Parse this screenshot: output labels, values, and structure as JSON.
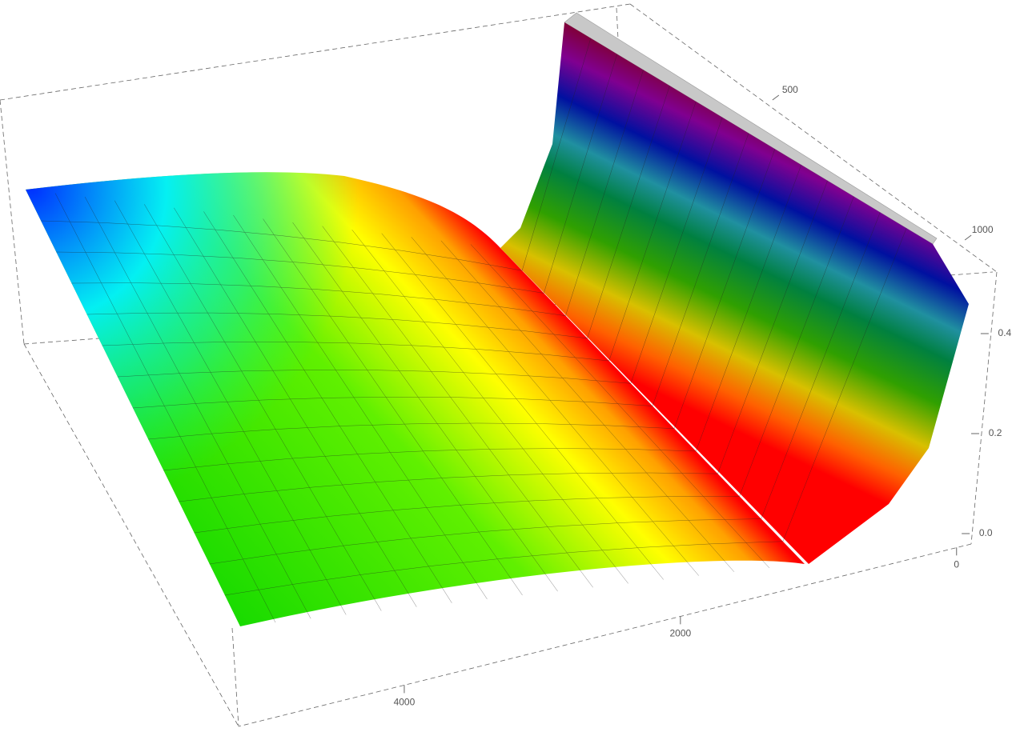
{
  "chart_data": {
    "type": "surface3d",
    "xlim": [
      -100,
      5200
    ],
    "xticks": [
      0,
      2000,
      4000
    ],
    "ylim": [
      130,
      1060
    ],
    "yticks": [
      500,
      1000
    ],
    "zlim": [
      -0.02,
      0.52
    ],
    "zticks": [
      {
        "value": 0,
        "label": "0.0"
      },
      0.2,
      0.4
    ]
  }
}
